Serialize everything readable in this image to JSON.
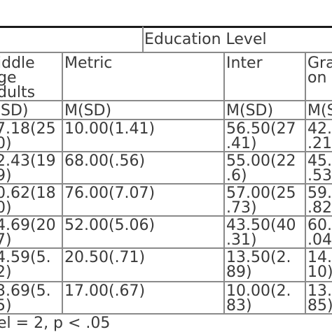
{
  "header": {
    "group_title": "Education Level",
    "col_middle_age": "iddle\nge\ndults",
    "col_metric": "Metric",
    "col_inter": "Inter",
    "col_grad": "Gra\non"
  },
  "subheader": {
    "middle_age": " SD)",
    "metric": "M(SD)",
    "inter": "M(SD)",
    "grad": "M(S"
  },
  "rows": [
    {
      "middle_age": "7.18(25\n0)",
      "metric": "10.00(1.41)",
      "inter": "56.50(27\n.41)",
      "grad": "42.\n.21"
    },
    {
      "middle_age": "2.43(19\n9)",
      "metric": "68.00(.56)",
      "inter": "55.00(22\n.6)",
      "grad": "45.\n.53"
    },
    {
      "middle_age": "0.62(18\n0)",
      "metric": "76.00(7.07)",
      "inter": "57.00(25\n.73)",
      "grad": "59.\n.82"
    },
    {
      "middle_age": "4.69(20\n7)",
      "metric": "52.00(5.06)",
      "inter": "43.50(40\n.31)",
      "grad": "60.\n.04"
    },
    {
      "middle_age": "4.59(5.\n2)",
      "metric": "20.50(.71)",
      "inter": "13.50(2.\n89)",
      "grad": "14.\n10)"
    },
    {
      "middle_age": "3.69(5.\n5)",
      "metric": "17.00(.67)",
      "inter": "10.00(2.\n83)",
      "grad": "13.\n85)"
    }
  ],
  "footnote": "el = 2, p < .05"
}
